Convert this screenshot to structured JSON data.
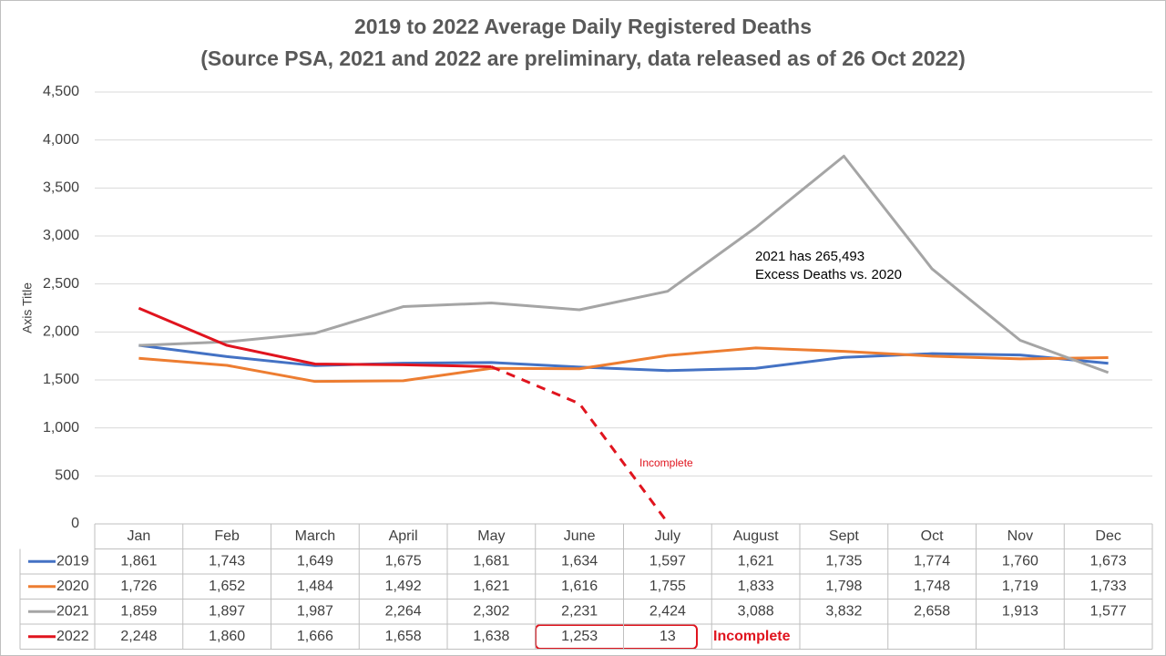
{
  "chart_data": {
    "type": "line",
    "title": "2019 to 2022 Average Daily Registered Deaths",
    "subtitle": "(Source PSA, 2021 and 2022 are preliminary, data released as of 26 Oct 2022)",
    "y_label": "Axis Title",
    "categories": [
      "Jan",
      "Feb",
      "March",
      "April",
      "May",
      "June",
      "July",
      "August",
      "Sept",
      "Oct",
      "Nov",
      "Dec"
    ],
    "series": [
      {
        "name": "2019",
        "color": "#4472c4",
        "values": [
          1861,
          1743,
          1649,
          1675,
          1681,
          1634,
          1597,
          1621,
          1735,
          1774,
          1760,
          1673
        ],
        "value_labels": [
          "1,861",
          "1,743",
          "1,649",
          "1,675",
          "1,681",
          "1,634",
          "1,597",
          "1,621",
          "1,735",
          "1,774",
          "1,760",
          "1,673"
        ]
      },
      {
        "name": "2020",
        "color": "#ed7d31",
        "values": [
          1726,
          1652,
          1484,
          1492,
          1621,
          1616,
          1755,
          1833,
          1798,
          1748,
          1719,
          1733
        ],
        "value_labels": [
          "1,726",
          "1,652",
          "1,484",
          "1,492",
          "1,621",
          "1,616",
          "1,755",
          "1,833",
          "1,798",
          "1,748",
          "1,719",
          "1,733"
        ]
      },
      {
        "name": "2021",
        "color": "#a5a5a5",
        "values": [
          1859,
          1897,
          1987,
          2264,
          2302,
          2231,
          2424,
          3088,
          3832,
          2658,
          1913,
          1577
        ],
        "value_labels": [
          "1,859",
          "1,897",
          "1,987",
          "2,264",
          "2,302",
          "2,231",
          "2,424",
          "3,088",
          "3,832",
          "2,658",
          "1,913",
          "1,577"
        ]
      },
      {
        "name": "2022",
        "color": "#e0141e",
        "dash_from": 4,
        "values": [
          2248,
          1860,
          1666,
          1658,
          1638,
          1253,
          13,
          null,
          null,
          null,
          null,
          null
        ],
        "value_labels": [
          "2,248",
          "1,860",
          "1,666",
          "1,658",
          "1,638",
          "1,253",
          "13",
          null,
          null,
          null,
          null,
          null
        ]
      }
    ],
    "ylim": [
      0,
      4500
    ],
    "yticks": [
      0,
      500,
      {
        "value": 1000,
        "label": "1,000"
      },
      {
        "value": 1500,
        "label": "1,500"
      },
      {
        "value": 2000,
        "label": "2,000"
      },
      {
        "value": 2500,
        "label": "2,500"
      },
      {
        "value": 3000,
        "label": "3,000"
      },
      {
        "value": 3500,
        "label": "3,500"
      },
      {
        "value": 4000,
        "label": "4,000"
      },
      {
        "value": 4500,
        "label": "4,500"
      }
    ],
    "grid": true,
    "annotations": [
      "2021 has 265,493",
      "Excess Deaths vs. 2020",
      "Incomplete"
    ],
    "table_note": "Incomplete"
  }
}
